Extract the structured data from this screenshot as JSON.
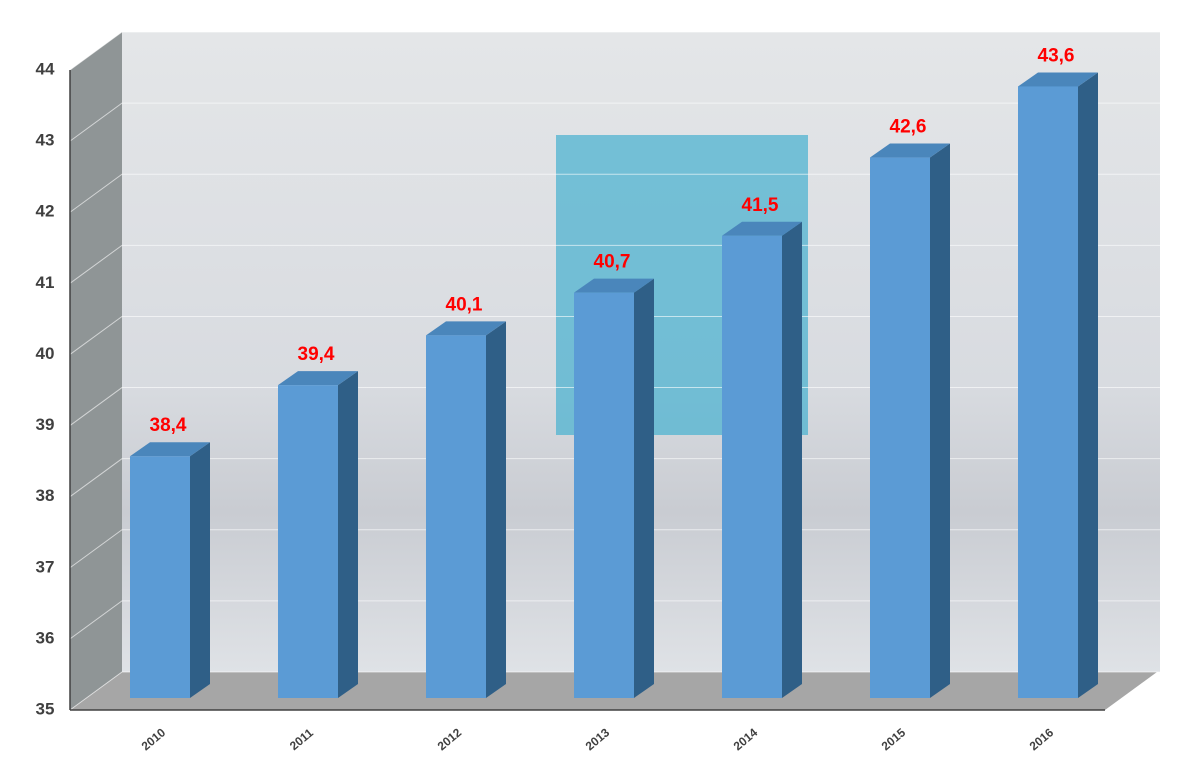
{
  "chart_data": {
    "type": "bar3d",
    "categories": [
      "2010",
      "2011",
      "2012",
      "2013",
      "2014",
      "2015",
      "2016"
    ],
    "values": [
      38.4,
      39.4,
      40.1,
      40.7,
      41.5,
      42.6,
      43.6
    ],
    "value_labels": [
      "38,4",
      "39,4",
      "40,1",
      "40,7",
      "41,5",
      "42,6",
      "43,6"
    ],
    "color": "#5b9bd5",
    "label_color": "#ff0000",
    "ylim": [
      35,
      44
    ],
    "yticks": [
      35,
      36,
      37,
      38,
      39,
      40,
      41,
      42,
      43,
      44
    ],
    "grid": true
  }
}
